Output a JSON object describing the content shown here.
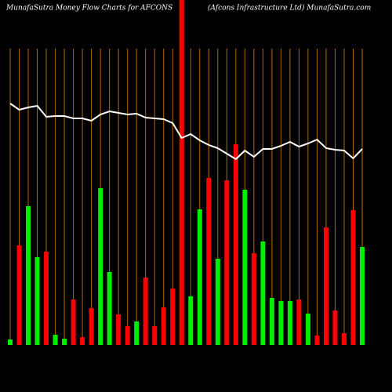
{
  "chart_data": {
    "type": "bar",
    "title": "MunafaSutra  Money Flow  Charts for AFCONS",
    "subtitle": "(Afcons Infrastructure   Ltd) MunafaSutra.com",
    "values": [
      7,
      127,
      177,
      112,
      119,
      13,
      8,
      58,
      10,
      47,
      200,
      93,
      39,
      24,
      30,
      86,
      24,
      48,
      72,
      440,
      62,
      173,
      213,
      110,
      210,
      256,
      198,
      117,
      132,
      60,
      56,
      56,
      58,
      40,
      12,
      150,
      44,
      15,
      172,
      125
    ],
    "colors": [
      "#00ee00",
      "#ff0000",
      "#00ee00",
      "#00ee00",
      "#ff0000",
      "#00ee00",
      "#00ee00",
      "#ff0000",
      "#ff0000",
      "#ff0000",
      "#00ee00",
      "#00ee00",
      "#ff0000",
      "#ff0000",
      "#00ee00",
      "#ff0000",
      "#ff0000",
      "#ff0000",
      "#ff0000",
      "#ff0000",
      "#00ee00",
      "#00ee00",
      "#ff0000",
      "#00ee00",
      "#ff0000",
      "#ff0000",
      "#00ee00",
      "#ff0000",
      "#00ee00",
      "#00ee00",
      "#00ee00",
      "#00ee00",
      "#ff0000",
      "#00ee00",
      "#ff0000",
      "#ff0000",
      "#ff0000",
      "#ff0000",
      "#ff0000",
      "#00ee00"
    ],
    "ylim": [
      0,
      440
    ],
    "grid_color": "#b36b00",
    "line": {
      "color": "#ffffff",
      "ylim": [
        0,
        500
      ],
      "values": [
        368,
        360,
        363,
        365,
        351,
        352,
        352,
        349,
        349,
        346,
        354,
        358,
        356,
        354,
        355,
        350,
        349,
        348,
        343,
        324,
        329,
        321,
        315,
        311,
        304,
        297,
        308,
        300,
        310,
        310,
        314,
        319,
        313,
        317,
        322,
        311,
        309,
        308,
        298,
        310
      ]
    }
  }
}
